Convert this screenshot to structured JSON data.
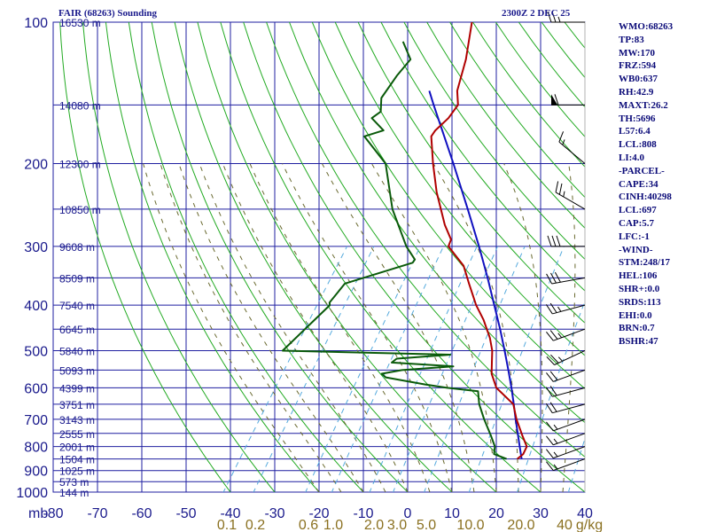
{
  "header": {
    "station_title": "FAIR (68263) Sounding",
    "time_label": "2300Z  2 DEC 25"
  },
  "indices": [
    "WMO:68263",
    "TP:83",
    "MW:170",
    "FRZ:594",
    "WB0:637",
    "RH:42.9",
    "MAXT:26.2",
    "TH:5696",
    "L57:6.4",
    "LCL:808",
    "LI:4.0",
    "-PARCEL-",
    "CAPE:34",
    "CINH:40298",
    "LCL:697",
    "CAP:5.7",
    "LFC:-1",
    "-WIND-",
    "STM:248/17",
    "HEL:106",
    "SHR+:0.0",
    "SRDS:113",
    "EHI:0.0",
    "BRN:0.7",
    "BSHR:47"
  ],
  "colors": {
    "isobar": "#1f1fa0",
    "isotherm": "#1f1fa0",
    "dry_adiabat": "#22aa22",
    "moist_adiabat": "#6a6a30",
    "mixing_ratio": "#55aadd",
    "temperature": "#b00000",
    "dewpoint": "#0a5a0a",
    "parcel": "#1010c0",
    "axis_text": "#1a1a8c",
    "mixing_text": "#8a7020",
    "wind": "#000000"
  },
  "chart_data": {
    "type": "line",
    "title": "FAIR (68263) Sounding",
    "x_unit_label": "mb",
    "xlim": [
      -80,
      40
    ],
    "ylim": [
      1000,
      100
    ],
    "y_scale": "log",
    "pressure_levels": [
      100,
      200,
      300,
      400,
      500,
      600,
      700,
      800,
      900,
      1000
    ],
    "temperature_ticks": [
      -80,
      -70,
      -60,
      -50,
      -40,
      -30,
      -20,
      -10,
      0,
      10,
      20,
      30,
      40
    ],
    "height_labels": [
      {
        "p": 100,
        "label": "16530 m"
      },
      {
        "p": 150,
        "label": "14080 m"
      },
      {
        "p": 200,
        "label": "12300 m"
      },
      {
        "p": 250,
        "label": "10850 m"
      },
      {
        "p": 300,
        "label": "9608 m"
      },
      {
        "p": 350,
        "label": "8509 m"
      },
      {
        "p": 400,
        "label": "7540 m"
      },
      {
        "p": 450,
        "label": "6645 m"
      },
      {
        "p": 500,
        "label": "5840 m"
      },
      {
        "p": 550,
        "label": "5093 m"
      },
      {
        "p": 600,
        "label": "4399 m"
      },
      {
        "p": 650,
        "label": "3751 m"
      },
      {
        "p": 700,
        "label": "3143 m"
      },
      {
        "p": 750,
        "label": "2555 m"
      },
      {
        "p": 800,
        "label": "2001 m"
      },
      {
        "p": 850,
        "label": "1504 m"
      },
      {
        "p": 900,
        "label": "1025 m"
      },
      {
        "p": 950,
        "label": "573 m"
      },
      {
        "p": 1000,
        "label": "144 m"
      }
    ],
    "mixing_ratio_labels": [
      "0.1",
      "0.2",
      "0.6",
      "1.0",
      "2.0",
      "3.0",
      "5.0",
      "10.0",
      "20.0",
      "40",
      "g/kg"
    ],
    "series": [
      {
        "key": "temperature",
        "points": [
          [
            850,
            19.5
          ],
          [
            830,
            20.1
          ],
          [
            800,
            19.7
          ],
          [
            760,
            17.1
          ],
          [
            700,
            13.1
          ],
          [
            650,
            10
          ],
          [
            600,
            3.6
          ],
          [
            560,
            0.3
          ],
          [
            530,
            -1.4
          ],
          [
            500,
            -3.2
          ],
          [
            470,
            -5.7
          ],
          [
            430,
            -10
          ],
          [
            400,
            -14
          ],
          [
            360,
            -19
          ],
          [
            330,
            -23
          ],
          [
            300,
            -29.5
          ],
          [
            290,
            -30
          ],
          [
            270,
            -33.7
          ],
          [
            230,
            -40.7
          ],
          [
            200,
            -46
          ],
          [
            175,
            -50.7
          ],
          [
            170,
            -50.7
          ],
          [
            160,
            -49.7
          ],
          [
            150,
            -49.6
          ],
          [
            140,
            -52
          ],
          [
            120,
            -55
          ],
          [
            100,
            -59.5
          ]
        ]
      },
      {
        "key": "dewpoint",
        "points": [
          [
            850,
            17.1
          ],
          [
            830,
            13.5
          ],
          [
            800,
            12.5
          ],
          [
            760,
            10
          ],
          [
            700,
            5.8
          ],
          [
            650,
            2.3
          ],
          [
            610,
            0
          ],
          [
            600,
            -7.5
          ],
          [
            590,
            -13
          ],
          [
            570,
            -23
          ],
          [
            560,
            -24.5
          ],
          [
            550,
            -20.5
          ],
          [
            540,
            -9.5
          ],
          [
            530,
            -24
          ],
          [
            520,
            -23.5
          ],
          [
            510,
            -12
          ],
          [
            500,
            -50.5
          ],
          [
            400,
            -47
          ],
          [
            395,
            -47.5
          ],
          [
            360,
            -47
          ],
          [
            325,
            -35
          ],
          [
            320,
            -35
          ],
          [
            300,
            -39
          ],
          [
            250,
            -48
          ],
          [
            200,
            -56.7
          ],
          [
            175,
            -65.8
          ],
          [
            170,
            -62.4
          ],
          [
            160,
            -67
          ],
          [
            155,
            -66
          ],
          [
            145,
            -68
          ],
          [
            130,
            -68
          ],
          [
            120,
            -67.5
          ],
          [
            110,
            -72
          ]
        ]
      },
      {
        "key": "parcel",
        "points": [
          [
            850,
            20.5
          ],
          [
            800,
            18.1
          ],
          [
            750,
            15.6
          ],
          [
            700,
            12.9
          ],
          [
            650,
            10.1
          ],
          [
            600,
            7
          ],
          [
            550,
            3.5
          ],
          [
            500,
            -0.4
          ],
          [
            450,
            -4.8
          ],
          [
            400,
            -9.9
          ],
          [
            350,
            -15.7
          ],
          [
            300,
            -22.6
          ],
          [
            250,
            -31
          ],
          [
            200,
            -41.4
          ],
          [
            150,
            -55.1
          ],
          [
            140,
            -58.3
          ]
        ]
      }
    ],
    "wind_barbs": [
      {
        "p": 850,
        "dir": 250,
        "spd": 15
      },
      {
        "p": 800,
        "dir": 250,
        "spd": 15
      },
      {
        "p": 750,
        "dir": 250,
        "spd": 15
      },
      {
        "p": 700,
        "dir": 250,
        "spd": 15
      },
      {
        "p": 650,
        "dir": 255,
        "spd": 20
      },
      {
        "p": 600,
        "dir": 255,
        "spd": 20
      },
      {
        "p": 550,
        "dir": 250,
        "spd": 20
      },
      {
        "p": 500,
        "dir": 245,
        "spd": 25
      },
      {
        "p": 450,
        "dir": 250,
        "spd": 25
      },
      {
        "p": 400,
        "dir": 255,
        "spd": 25
      },
      {
        "p": 350,
        "dir": 260,
        "spd": 30
      },
      {
        "p": 300,
        "dir": 270,
        "spd": 30
      },
      {
        "p": 250,
        "dir": 300,
        "spd": 25
      },
      {
        "p": 200,
        "dir": 310,
        "spd": 15
      },
      {
        "p": 150,
        "dir": 270,
        "spd": 60
      },
      {
        "p": 100,
        "dir": 270,
        "spd": 25
      }
    ],
    "grid": true
  }
}
